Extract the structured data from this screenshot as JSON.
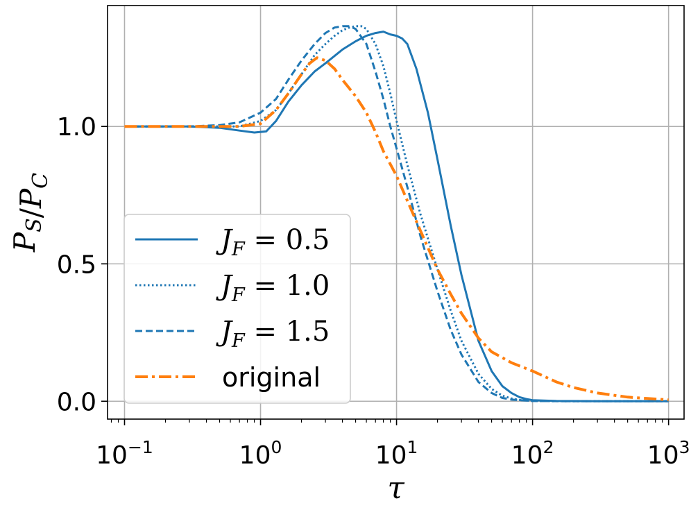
{
  "chart_data": {
    "type": "line",
    "x_scale": "log",
    "xlim": [
      0.075,
      1300
    ],
    "ylim": [
      -0.065,
      1.44
    ],
    "xlabel": "τ",
    "ylabel": "P_S/P_C",
    "xticks": [
      {
        "value": 0.1,
        "base": "10",
        "exp": "−1"
      },
      {
        "value": 1,
        "base": "10",
        "exp": "0"
      },
      {
        "value": 10,
        "base": "10",
        "exp": "1"
      },
      {
        "value": 100,
        "base": "10",
        "exp": "2"
      },
      {
        "value": 1000,
        "base": "10",
        "exp": "3"
      }
    ],
    "yticks": [
      {
        "value": 0.0,
        "label": "0.0"
      },
      {
        "value": 0.5,
        "label": "0.5"
      },
      {
        "value": 1.0,
        "label": "1.0"
      }
    ],
    "grid": true,
    "legend_position": "lower-left",
    "series": [
      {
        "name": "J_F=0.5",
        "label_var": "J",
        "label_sub": "F",
        "label_val": "0.5",
        "color": "#1f77b4",
        "style": "solid",
        "x": [
          0.1,
          0.3,
          0.5,
          0.7,
          0.9,
          1.1,
          1.3,
          1.6,
          2,
          2.5,
          3,
          4,
          5,
          6,
          7,
          8,
          9,
          10,
          11,
          12,
          14,
          17,
          20,
          25,
          30,
          40,
          50,
          60,
          70,
          80,
          90,
          100,
          150,
          300,
          1000
        ],
        "y": [
          1.0,
          1.0,
          0.995,
          0.985,
          0.978,
          0.982,
          1.02,
          1.09,
          1.15,
          1.2,
          1.23,
          1.28,
          1.31,
          1.33,
          1.34,
          1.345,
          1.335,
          1.33,
          1.32,
          1.3,
          1.21,
          1.05,
          0.88,
          0.64,
          0.46,
          0.22,
          0.11,
          0.055,
          0.03,
          0.015,
          0.008,
          0.004,
          0.001,
          0.0,
          0.0
        ]
      },
      {
        "name": "J_F=1.0",
        "label_var": "J",
        "label_sub": "F",
        "label_val": "1.0",
        "color": "#1f77b4",
        "style": "dotted",
        "x": [
          0.1,
          0.3,
          0.5,
          0.7,
          1,
          1.3,
          1.6,
          2,
          2.5,
          3,
          3.5,
          4,
          4.5,
          5,
          5.5,
          6,
          7,
          8,
          9,
          10,
          12,
          15,
          20,
          25,
          30,
          40,
          50,
          60,
          70,
          80,
          100,
          200,
          1000
        ],
        "y": [
          1.0,
          1.0,
          1.0,
          1.0,
          1.02,
          1.06,
          1.12,
          1.19,
          1.26,
          1.3,
          1.33,
          1.35,
          1.36,
          1.365,
          1.365,
          1.355,
          1.3,
          1.22,
          1.12,
          1.02,
          0.86,
          0.68,
          0.48,
          0.33,
          0.22,
          0.1,
          0.045,
          0.02,
          0.01,
          0.005,
          0.001,
          0.0,
          0.0
        ]
      },
      {
        "name": "J_F=1.5",
        "label_var": "J",
        "label_sub": "F",
        "label_val": "1.5",
        "color": "#1f77b4",
        "style": "dashed",
        "x": [
          0.1,
          0.3,
          0.5,
          0.7,
          1,
          1.3,
          1.6,
          2,
          2.5,
          3,
          3.5,
          4,
          4.5,
          5,
          6,
          7,
          8,
          9,
          10,
          12,
          15,
          20,
          25,
          30,
          40,
          50,
          60,
          70,
          100,
          200,
          1000
        ],
        "y": [
          1.0,
          1.0,
          1.005,
          1.015,
          1.05,
          1.1,
          1.17,
          1.24,
          1.3,
          1.34,
          1.36,
          1.365,
          1.365,
          1.355,
          1.3,
          1.2,
          1.1,
          1.0,
          0.92,
          0.78,
          0.6,
          0.4,
          0.26,
          0.17,
          0.07,
          0.03,
          0.012,
          0.006,
          0.001,
          0.0,
          0.0
        ]
      },
      {
        "name": "original",
        "label_var": "",
        "label_sub": "",
        "label_val": "original",
        "color": "#ff7f0e",
        "style": "dashdot",
        "x": [
          0.1,
          0.3,
          0.5,
          0.7,
          1,
          1.3,
          1.6,
          2,
          2.3,
          2.6,
          3,
          3.5,
          4,
          5,
          6,
          7,
          8,
          10,
          12,
          15,
          20,
          25,
          30,
          40,
          50,
          70,
          100,
          150,
          200,
          300,
          500,
          700,
          1000
        ],
        "y": [
          1.0,
          1.0,
          1.0,
          1.0,
          1.01,
          1.06,
          1.12,
          1.19,
          1.23,
          1.25,
          1.24,
          1.21,
          1.17,
          1.11,
          1.05,
          0.98,
          0.91,
          0.82,
          0.73,
          0.62,
          0.48,
          0.39,
          0.32,
          0.23,
          0.18,
          0.14,
          0.11,
          0.07,
          0.05,
          0.03,
          0.015,
          0.01,
          0.005
        ]
      }
    ]
  }
}
